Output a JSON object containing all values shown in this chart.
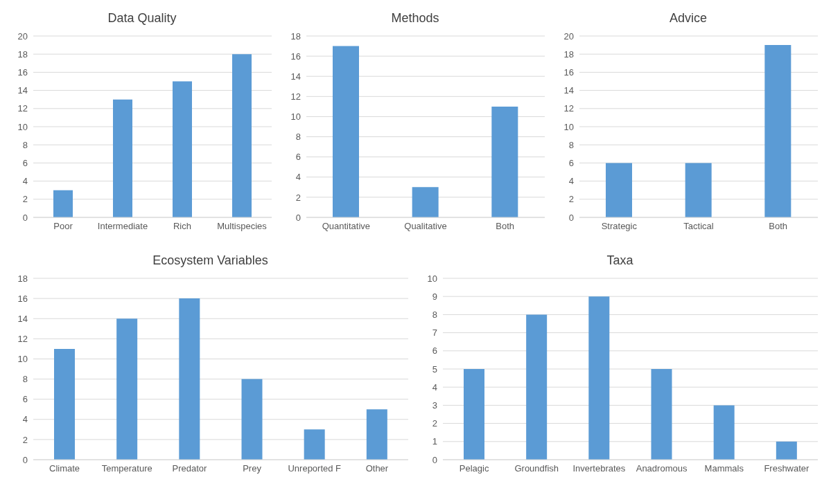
{
  "chart_data": [
    {
      "type": "bar",
      "title": "Data Quality",
      "categories": [
        "Poor",
        "Intermediate",
        "Rich",
        "Multispecies"
      ],
      "values": [
        3,
        13,
        15,
        18
      ],
      "color": "#5b9bd5",
      "ylim": [
        0,
        20
      ],
      "yticks": [
        0,
        2,
        4,
        6,
        8,
        10,
        12,
        14,
        16,
        18,
        20
      ],
      "grid": "y",
      "legend": false
    },
    {
      "type": "bar",
      "title": "Methods",
      "categories": [
        "Quantitative",
        "Qualitative",
        "Both"
      ],
      "values": [
        17,
        3,
        11
      ],
      "color": "#5b9bd5",
      "ylim": [
        0,
        18
      ],
      "yticks": [
        0,
        2,
        4,
        6,
        8,
        10,
        12,
        14,
        16,
        18
      ],
      "grid": "y",
      "legend": false
    },
    {
      "type": "bar",
      "title": "Advice",
      "categories": [
        "Strategic",
        "Tactical",
        "Both"
      ],
      "values": [
        6,
        6,
        19
      ],
      "color": "#5b9bd5",
      "ylim": [
        0,
        20
      ],
      "yticks": [
        0,
        2,
        4,
        6,
        8,
        10,
        12,
        14,
        16,
        18,
        20
      ],
      "grid": "y",
      "legend": false
    },
    {
      "type": "bar",
      "title": "Ecosystem Variables",
      "categories": [
        "Climate",
        "Temperature",
        "Predator",
        "Prey",
        "Unreported F",
        "Other"
      ],
      "values": [
        11,
        14,
        16,
        8,
        3,
        5
      ],
      "color": "#5b9bd5",
      "ylim": [
        0,
        18
      ],
      "yticks": [
        0,
        2,
        4,
        6,
        8,
        10,
        12,
        14,
        16,
        18
      ],
      "grid": "y",
      "legend": false
    },
    {
      "type": "bar",
      "title": "Taxa",
      "categories": [
        "Pelagic",
        "Groundfish",
        "Invertebrates",
        "Anadromous",
        "Mammals",
        "Freshwater"
      ],
      "values": [
        5,
        8,
        9,
        5,
        3,
        1
      ],
      "color": "#5b9bd5",
      "ylim": [
        0,
        10
      ],
      "yticks": [
        0,
        1,
        2,
        3,
        4,
        5,
        6,
        7,
        8,
        9,
        10
      ],
      "grid": "y",
      "legend": false
    }
  ]
}
